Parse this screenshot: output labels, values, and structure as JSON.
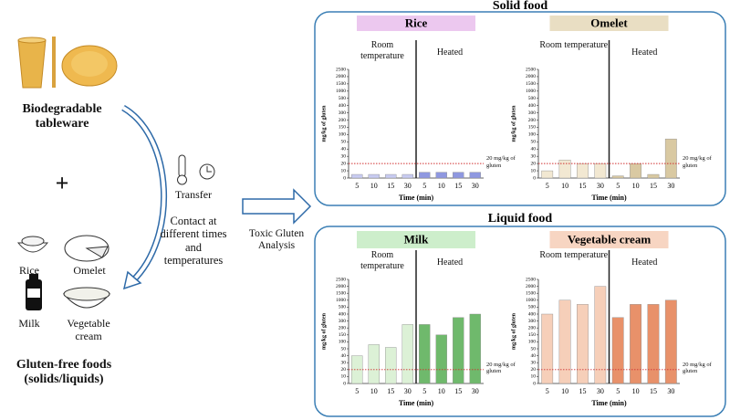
{
  "left": {
    "tableware": "Biodegradable tableware",
    "plus": "+",
    "foods": [
      "Rice",
      "Omelet",
      "Milk",
      "Vegetable cream"
    ],
    "foods_caption": "Gluten-free foods (solids/liquids)"
  },
  "middle": {
    "transfer": "Transfer",
    "contact": "Contact at different times and temperatures",
    "analysis": "Toxic Gluten Analysis"
  },
  "panels": [
    "Solid food",
    "Liquid food"
  ],
  "chart_data": [
    {
      "type": "bar",
      "title": "Rice",
      "title_color": "#ecc8ef",
      "categories": [
        "5",
        "10",
        "15",
        "30"
      ],
      "series": [
        {
          "name": "Room temperature",
          "color": "#c8ccf2",
          "values": [
            5,
            5,
            5,
            5
          ]
        },
        {
          "name": "Heated",
          "color": "#8f98e0",
          "values": [
            8,
            8,
            8,
            8
          ]
        }
      ],
      "ylabel": "mg/kg of gluten",
      "xlabel": "Time (min)",
      "ylim": [
        0,
        2500
      ],
      "yticks": [
        0,
        10,
        20,
        30,
        40,
        50,
        100,
        150,
        200,
        300,
        400,
        500,
        1000,
        1500,
        2000,
        2500
      ],
      "threshold": {
        "value": 20,
        "label": "20 mg/kg of gluten",
        "color": "#d03030"
      }
    },
    {
      "type": "bar",
      "title": "Omelet",
      "title_color": "#e9dec3",
      "categories": [
        "5",
        "10",
        "15",
        "30"
      ],
      "series": [
        {
          "name": "Room temperature",
          "color": "#f2e8d2",
          "values": [
            10,
            25,
            20,
            20
          ]
        },
        {
          "name": "Heated",
          "color": "#d9c9a2",
          "values": [
            3,
            20,
            5,
            70
          ]
        }
      ],
      "ylabel": "mg/kg of gluten",
      "xlabel": "Time (min)",
      "ylim": [
        0,
        2500
      ],
      "yticks": [
        0,
        10,
        20,
        30,
        40,
        50,
        100,
        150,
        200,
        300,
        400,
        500,
        1000,
        1500,
        2000,
        2500
      ],
      "threshold": {
        "value": 20,
        "label": "20 mg/kg of gluten",
        "color": "#d03030"
      }
    },
    {
      "type": "bar",
      "title": "Milk",
      "title_color": "#cdeecb",
      "categories": [
        "5",
        "10",
        "15",
        "30"
      ],
      "series": [
        {
          "name": "Room temperature",
          "color": "#dcf1d6",
          "values": [
            40,
            80,
            60,
            250
          ]
        },
        {
          "name": "Heated",
          "color": "#6fb96c",
          "values": [
            250,
            150,
            350,
            400
          ]
        }
      ],
      "ylabel": "mg/kg of gluten",
      "xlabel": "Time (min)",
      "ylim": [
        0,
        2500
      ],
      "yticks": [
        0,
        10,
        20,
        30,
        40,
        50,
        100,
        150,
        200,
        300,
        400,
        500,
        1000,
        1500,
        2000,
        2500
      ],
      "threshold": {
        "value": 20,
        "label": "20 mg/kg of gluten",
        "color": "#d03030"
      }
    },
    {
      "type": "bar",
      "title": "Vegetable cream",
      "title_color": "#f7d5c2",
      "categories": [
        "5",
        "10",
        "15",
        "30"
      ],
      "series": [
        {
          "name": "Room temperature",
          "color": "#f6cfb9",
          "values": [
            400,
            1000,
            700,
            2000
          ]
        },
        {
          "name": "Heated",
          "color": "#e8916a",
          "values": [
            350,
            700,
            700,
            1000
          ]
        }
      ],
      "ylabel": "mg/kg of gluten",
      "xlabel": "Time (min)",
      "ylim": [
        0,
        2500
      ],
      "yticks": [
        0,
        10,
        20,
        30,
        40,
        50,
        100,
        150,
        200,
        300,
        400,
        500,
        1000,
        1500,
        2000,
        2500
      ],
      "threshold": {
        "value": 20,
        "label": "20 mg/kg of gluten",
        "color": "#d03030"
      }
    }
  ]
}
